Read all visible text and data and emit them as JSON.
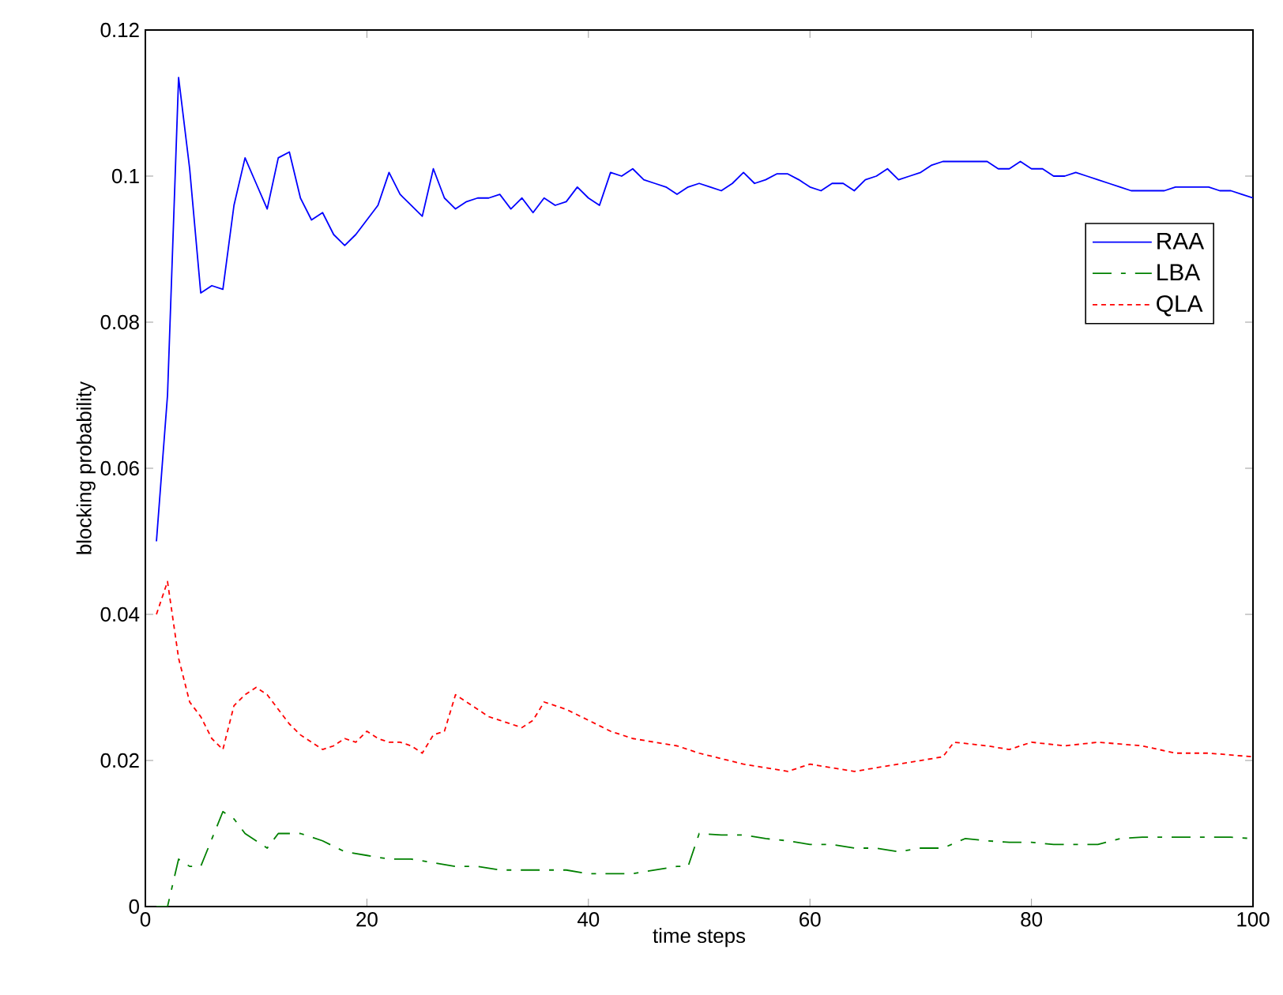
{
  "chart_data": {
    "type": "line",
    "xlabel": "time steps",
    "ylabel": "blocking probability",
    "xlim": [
      0,
      100
    ],
    "ylim": [
      0,
      0.12
    ],
    "xticks": [
      0,
      20,
      40,
      60,
      80,
      100
    ],
    "yticks": [
      0,
      0.02,
      0.04,
      0.06,
      0.08,
      0.1,
      0.12
    ],
    "grid": false,
    "legend": "right",
    "series": [
      {
        "name": "RAA",
        "color": "#0000ff",
        "line_style": "solid",
        "x": [
          1,
          2,
          3,
          4,
          5,
          6,
          7,
          8,
          9,
          10,
          11,
          12,
          13,
          14,
          15,
          16,
          17,
          18,
          19,
          20,
          21,
          22,
          23,
          24,
          25,
          26,
          27,
          28,
          29,
          30,
          31,
          32,
          33,
          34,
          35,
          36,
          37,
          38,
          39,
          40,
          41,
          42,
          43,
          44,
          45,
          46,
          47,
          48,
          49,
          50,
          51,
          52,
          53,
          54,
          55,
          56,
          57,
          58,
          59,
          60,
          61,
          62,
          63,
          64,
          65,
          66,
          67,
          68,
          69,
          70,
          71,
          72,
          73,
          74,
          75,
          76,
          77,
          78,
          79,
          80,
          81,
          82,
          83,
          84,
          85,
          86,
          87,
          88,
          89,
          90,
          91,
          92,
          93,
          94,
          95,
          96,
          97,
          98,
          99,
          100
        ],
        "values": [
          0.05,
          0.07,
          0.1135,
          0.101,
          0.084,
          0.085,
          0.0845,
          0.096,
          0.1025,
          0.099,
          0.0955,
          0.1025,
          0.1033,
          0.097,
          0.094,
          0.095,
          0.092,
          0.0905,
          0.092,
          0.094,
          0.096,
          0.1005,
          0.0975,
          0.096,
          0.0945,
          0.101,
          0.097,
          0.0955,
          0.0965,
          0.097,
          0.097,
          0.0975,
          0.0955,
          0.097,
          0.095,
          0.097,
          0.096,
          0.0965,
          0.0985,
          0.097,
          0.096,
          0.1005,
          0.1,
          0.101,
          0.0995,
          0.099,
          0.0985,
          0.0975,
          0.0985,
          0.099,
          0.0985,
          0.098,
          0.099,
          0.1005,
          0.099,
          0.0995,
          0.1003,
          0.1003,
          0.0995,
          0.0985,
          0.098,
          0.099,
          0.099,
          0.098,
          0.0995,
          0.1,
          0.101,
          0.0995,
          0.1,
          0.1005,
          0.1015,
          0.102,
          0.102,
          0.102,
          0.102,
          0.102,
          0.101,
          0.101,
          0.102,
          0.101,
          0.101,
          0.1,
          0.1,
          0.1005,
          0.1,
          0.0995,
          0.099,
          0.0985,
          0.098,
          0.098,
          0.098,
          0.098,
          0.0985,
          0.0985,
          0.0985,
          0.0985,
          0.098,
          0.098,
          0.0975,
          0.097
        ]
      },
      {
        "name": "LBA",
        "color": "#008000",
        "line_style": "dashdot",
        "x": [
          1,
          2,
          3,
          4,
          5,
          7,
          8,
          9,
          11,
          12,
          14,
          16,
          18,
          20,
          22,
          24,
          26,
          28,
          30,
          32,
          34,
          36,
          38,
          40,
          42,
          44,
          46,
          48,
          49,
          50,
          52,
          54,
          56,
          58,
          60,
          62,
          64,
          66,
          68,
          70,
          72,
          74,
          76,
          78,
          80,
          82,
          84,
          86,
          88,
          90,
          94,
          98,
          100
        ],
        "values": [
          0,
          0,
          0.0065,
          0.0055,
          0.0055,
          0.013,
          0.012,
          0.01,
          0.008,
          0.01,
          0.01,
          0.009,
          0.0075,
          0.007,
          0.0065,
          0.0065,
          0.006,
          0.0055,
          0.0055,
          0.005,
          0.005,
          0.005,
          0.005,
          0.0045,
          0.0045,
          0.0045,
          0.005,
          0.0055,
          0.0055,
          0.01,
          0.0098,
          0.0098,
          0.0093,
          0.009,
          0.0085,
          0.0085,
          0.008,
          0.008,
          0.0075,
          0.008,
          0.008,
          0.0093,
          0.009,
          0.0088,
          0.0088,
          0.0085,
          0.0085,
          0.0085,
          0.0093,
          0.0095,
          0.0095,
          0.0095,
          0.0093
        ]
      },
      {
        "name": "QLA",
        "color": "#ff0000",
        "line_style": "dashed",
        "x": [
          1,
          2,
          3,
          4,
          5,
          6,
          7,
          8,
          9,
          10,
          11,
          12,
          13,
          14,
          15,
          16,
          17,
          18,
          19,
          20,
          21,
          22,
          23,
          24,
          25,
          26,
          27,
          28,
          29,
          30,
          31,
          32,
          33,
          34,
          35,
          36,
          38,
          40,
          42,
          44,
          46,
          48,
          50,
          54,
          58,
          60,
          64,
          68,
          70,
          72,
          73,
          76,
          78,
          80,
          83,
          86,
          90,
          93,
          96,
          100
        ],
        "values": [
          0.04,
          0.0445,
          0.034,
          0.028,
          0.026,
          0.023,
          0.0215,
          0.0275,
          0.029,
          0.03,
          0.029,
          0.027,
          0.025,
          0.0235,
          0.0225,
          0.0215,
          0.022,
          0.023,
          0.0225,
          0.024,
          0.023,
          0.0225,
          0.0225,
          0.022,
          0.021,
          0.0235,
          0.024,
          0.029,
          0.028,
          0.027,
          0.026,
          0.0255,
          0.025,
          0.0245,
          0.0255,
          0.028,
          0.027,
          0.0255,
          0.024,
          0.023,
          0.0225,
          0.022,
          0.021,
          0.0195,
          0.0185,
          0.0195,
          0.0185,
          0.0195,
          0.02,
          0.0205,
          0.0225,
          0.022,
          0.0215,
          0.0225,
          0.022,
          0.0225,
          0.022,
          0.021,
          0.021,
          0.0205
        ]
      }
    ]
  }
}
